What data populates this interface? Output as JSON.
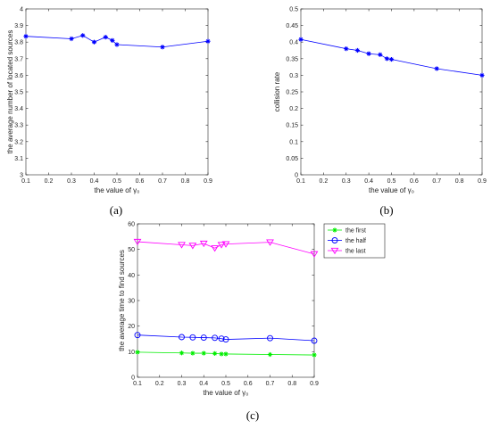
{
  "chart_data": [
    {
      "id": "a",
      "type": "line",
      "caption": "(a)",
      "xlabel": "the value of γ₀",
      "ylabel": "the average number of located sources",
      "xlim": [
        0.1,
        0.9
      ],
      "ylim": [
        3,
        4
      ],
      "xticks": [
        0.1,
        0.2,
        0.3,
        0.4,
        0.5,
        0.6,
        0.7,
        0.8,
        0.9
      ],
      "xtick_labels": [
        "0.1",
        "0.2",
        "0.3",
        "0.4",
        "0.5",
        "0.6",
        "0.7",
        "0.8",
        "0.9"
      ],
      "yticks": [
        3,
        3.1,
        3.2,
        3.3,
        3.4,
        3.5,
        3.6,
        3.7,
        3.8,
        3.9,
        4
      ],
      "ytick_labels": [
        "3",
        "3.1",
        "3.2",
        "3.3",
        "3.4",
        "3.5",
        "3.6",
        "3.7",
        "3.8",
        "3.9",
        "4"
      ],
      "grid": false,
      "series": [
        {
          "color": "#0000ff",
          "marker": "star",
          "x": [
            0.1,
            0.3,
            0.35,
            0.4,
            0.45,
            0.48,
            0.5,
            0.7,
            0.9
          ],
          "y": [
            3.835,
            3.82,
            3.84,
            3.8,
            3.83,
            3.81,
            3.785,
            3.77,
            3.805
          ]
        }
      ]
    },
    {
      "id": "b",
      "type": "line",
      "caption": "(b)",
      "xlabel": "the value of γ₀",
      "ylabel": "collision rate",
      "xlim": [
        0.1,
        0.9
      ],
      "ylim": [
        0,
        0.5
      ],
      "xticks": [
        0.1,
        0.2,
        0.3,
        0.4,
        0.5,
        0.6,
        0.7,
        0.8,
        0.9
      ],
      "xtick_labels": [
        "0.1",
        "0.2",
        "0.3",
        "0.4",
        "0.5",
        "0.6",
        "0.7",
        "0.8",
        "0.9"
      ],
      "yticks": [
        0,
        0.05,
        0.1,
        0.15,
        0.2,
        0.25,
        0.3,
        0.35,
        0.4,
        0.45,
        0.5
      ],
      "ytick_labels": [
        "0",
        "0.05",
        "0.1",
        "0.15",
        "0.2",
        "0.25",
        "0.3",
        "0.35",
        "0.4",
        "0.45",
        "0.5"
      ],
      "grid": false,
      "series": [
        {
          "color": "#0000ff",
          "marker": "star",
          "x": [
            0.1,
            0.3,
            0.35,
            0.4,
            0.45,
            0.48,
            0.5,
            0.7,
            0.9
          ],
          "y": [
            0.408,
            0.38,
            0.375,
            0.365,
            0.362,
            0.35,
            0.348,
            0.32,
            0.3
          ]
        }
      ]
    },
    {
      "id": "c",
      "type": "line",
      "caption": "(c)",
      "xlabel": "the value of γ₀",
      "ylabel": "the average time to find sources",
      "xlim": [
        0.1,
        0.9
      ],
      "ylim": [
        0,
        60
      ],
      "xticks": [
        0.1,
        0.2,
        0.3,
        0.4,
        0.5,
        0.6,
        0.7,
        0.8,
        0.9
      ],
      "xtick_labels": [
        "0.1",
        "0.2",
        "0.3",
        "0.4",
        "0.5",
        "0.6",
        "0.7",
        "0.8",
        "0.9"
      ],
      "yticks": [
        0,
        10,
        20,
        30,
        40,
        50,
        60
      ],
      "ytick_labels": [
        "0",
        "10",
        "20",
        "30",
        "40",
        "50",
        "60"
      ],
      "grid": false,
      "legend": "top-right-outside",
      "series": [
        {
          "name": "the first",
          "color": "#00ee00",
          "marker": "star",
          "x": [
            0.1,
            0.3,
            0.35,
            0.4,
            0.45,
            0.48,
            0.5,
            0.7,
            0.9
          ],
          "y": [
            9.8,
            9.5,
            9.4,
            9.4,
            9.3,
            9.1,
            9.1,
            8.9,
            8.7
          ]
        },
        {
          "name": "the half",
          "color": "#0000ff",
          "marker": "circle",
          "x": [
            0.1,
            0.3,
            0.35,
            0.4,
            0.45,
            0.48,
            0.5,
            0.7,
            0.9
          ],
          "y": [
            16.5,
            15.7,
            15.6,
            15.5,
            15.4,
            15.1,
            14.8,
            15.3,
            14.3
          ]
        },
        {
          "name": "the last",
          "color": "#ff00ff",
          "marker": "triangle-down",
          "x": [
            0.1,
            0.3,
            0.35,
            0.4,
            0.45,
            0.48,
            0.5,
            0.7,
            0.9
          ],
          "y": [
            53,
            51.8,
            51.5,
            52.3,
            50.5,
            51.8,
            52.1,
            52.8,
            48.2
          ]
        }
      ]
    }
  ]
}
